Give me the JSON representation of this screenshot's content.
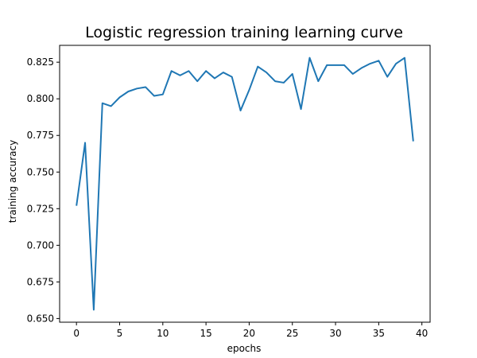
{
  "chart_data": {
    "type": "line",
    "title": "Logistic regression training learning curve",
    "xlabel": "epochs",
    "ylabel": "training accuracy",
    "xlim": [
      -1.95,
      40.95
    ],
    "ylim": [
      0.6475,
      0.8365
    ],
    "xticks": [
      0,
      5,
      10,
      15,
      20,
      25,
      30,
      35,
      40
    ],
    "xtick_labels": [
      "0",
      "5",
      "10",
      "15",
      "20",
      "25",
      "30",
      "35",
      "40"
    ],
    "yticks": [
      0.65,
      0.675,
      0.7,
      0.725,
      0.75,
      0.775,
      0.8,
      0.825
    ],
    "ytick_labels": [
      "0.650",
      "0.675",
      "0.700",
      "0.725",
      "0.750",
      "0.775",
      "0.800",
      "0.825"
    ],
    "grid": false,
    "legend": "none",
    "series": [
      {
        "color": "#1f77b4",
        "x": [
          0,
          1,
          2,
          3,
          4,
          5,
          6,
          7,
          8,
          9,
          10,
          11,
          12,
          13,
          14,
          15,
          16,
          17,
          18,
          19,
          20,
          21,
          22,
          23,
          24,
          25,
          26,
          27,
          28,
          29,
          30,
          31,
          32,
          33,
          34,
          35,
          36,
          37,
          38,
          39
        ],
        "y": [
          0.727,
          0.77,
          0.656,
          0.797,
          0.795,
          0.801,
          0.805,
          0.807,
          0.808,
          0.802,
          0.803,
          0.819,
          0.816,
          0.819,
          0.812,
          0.819,
          0.814,
          0.818,
          0.815,
          0.792,
          0.806,
          0.822,
          0.818,
          0.812,
          0.811,
          0.817,
          0.793,
          0.828,
          0.812,
          0.823,
          0.823,
          0.823,
          0.817,
          0.821,
          0.824,
          0.826,
          0.815,
          0.824,
          0.828,
          0.771
        ]
      }
    ]
  }
}
